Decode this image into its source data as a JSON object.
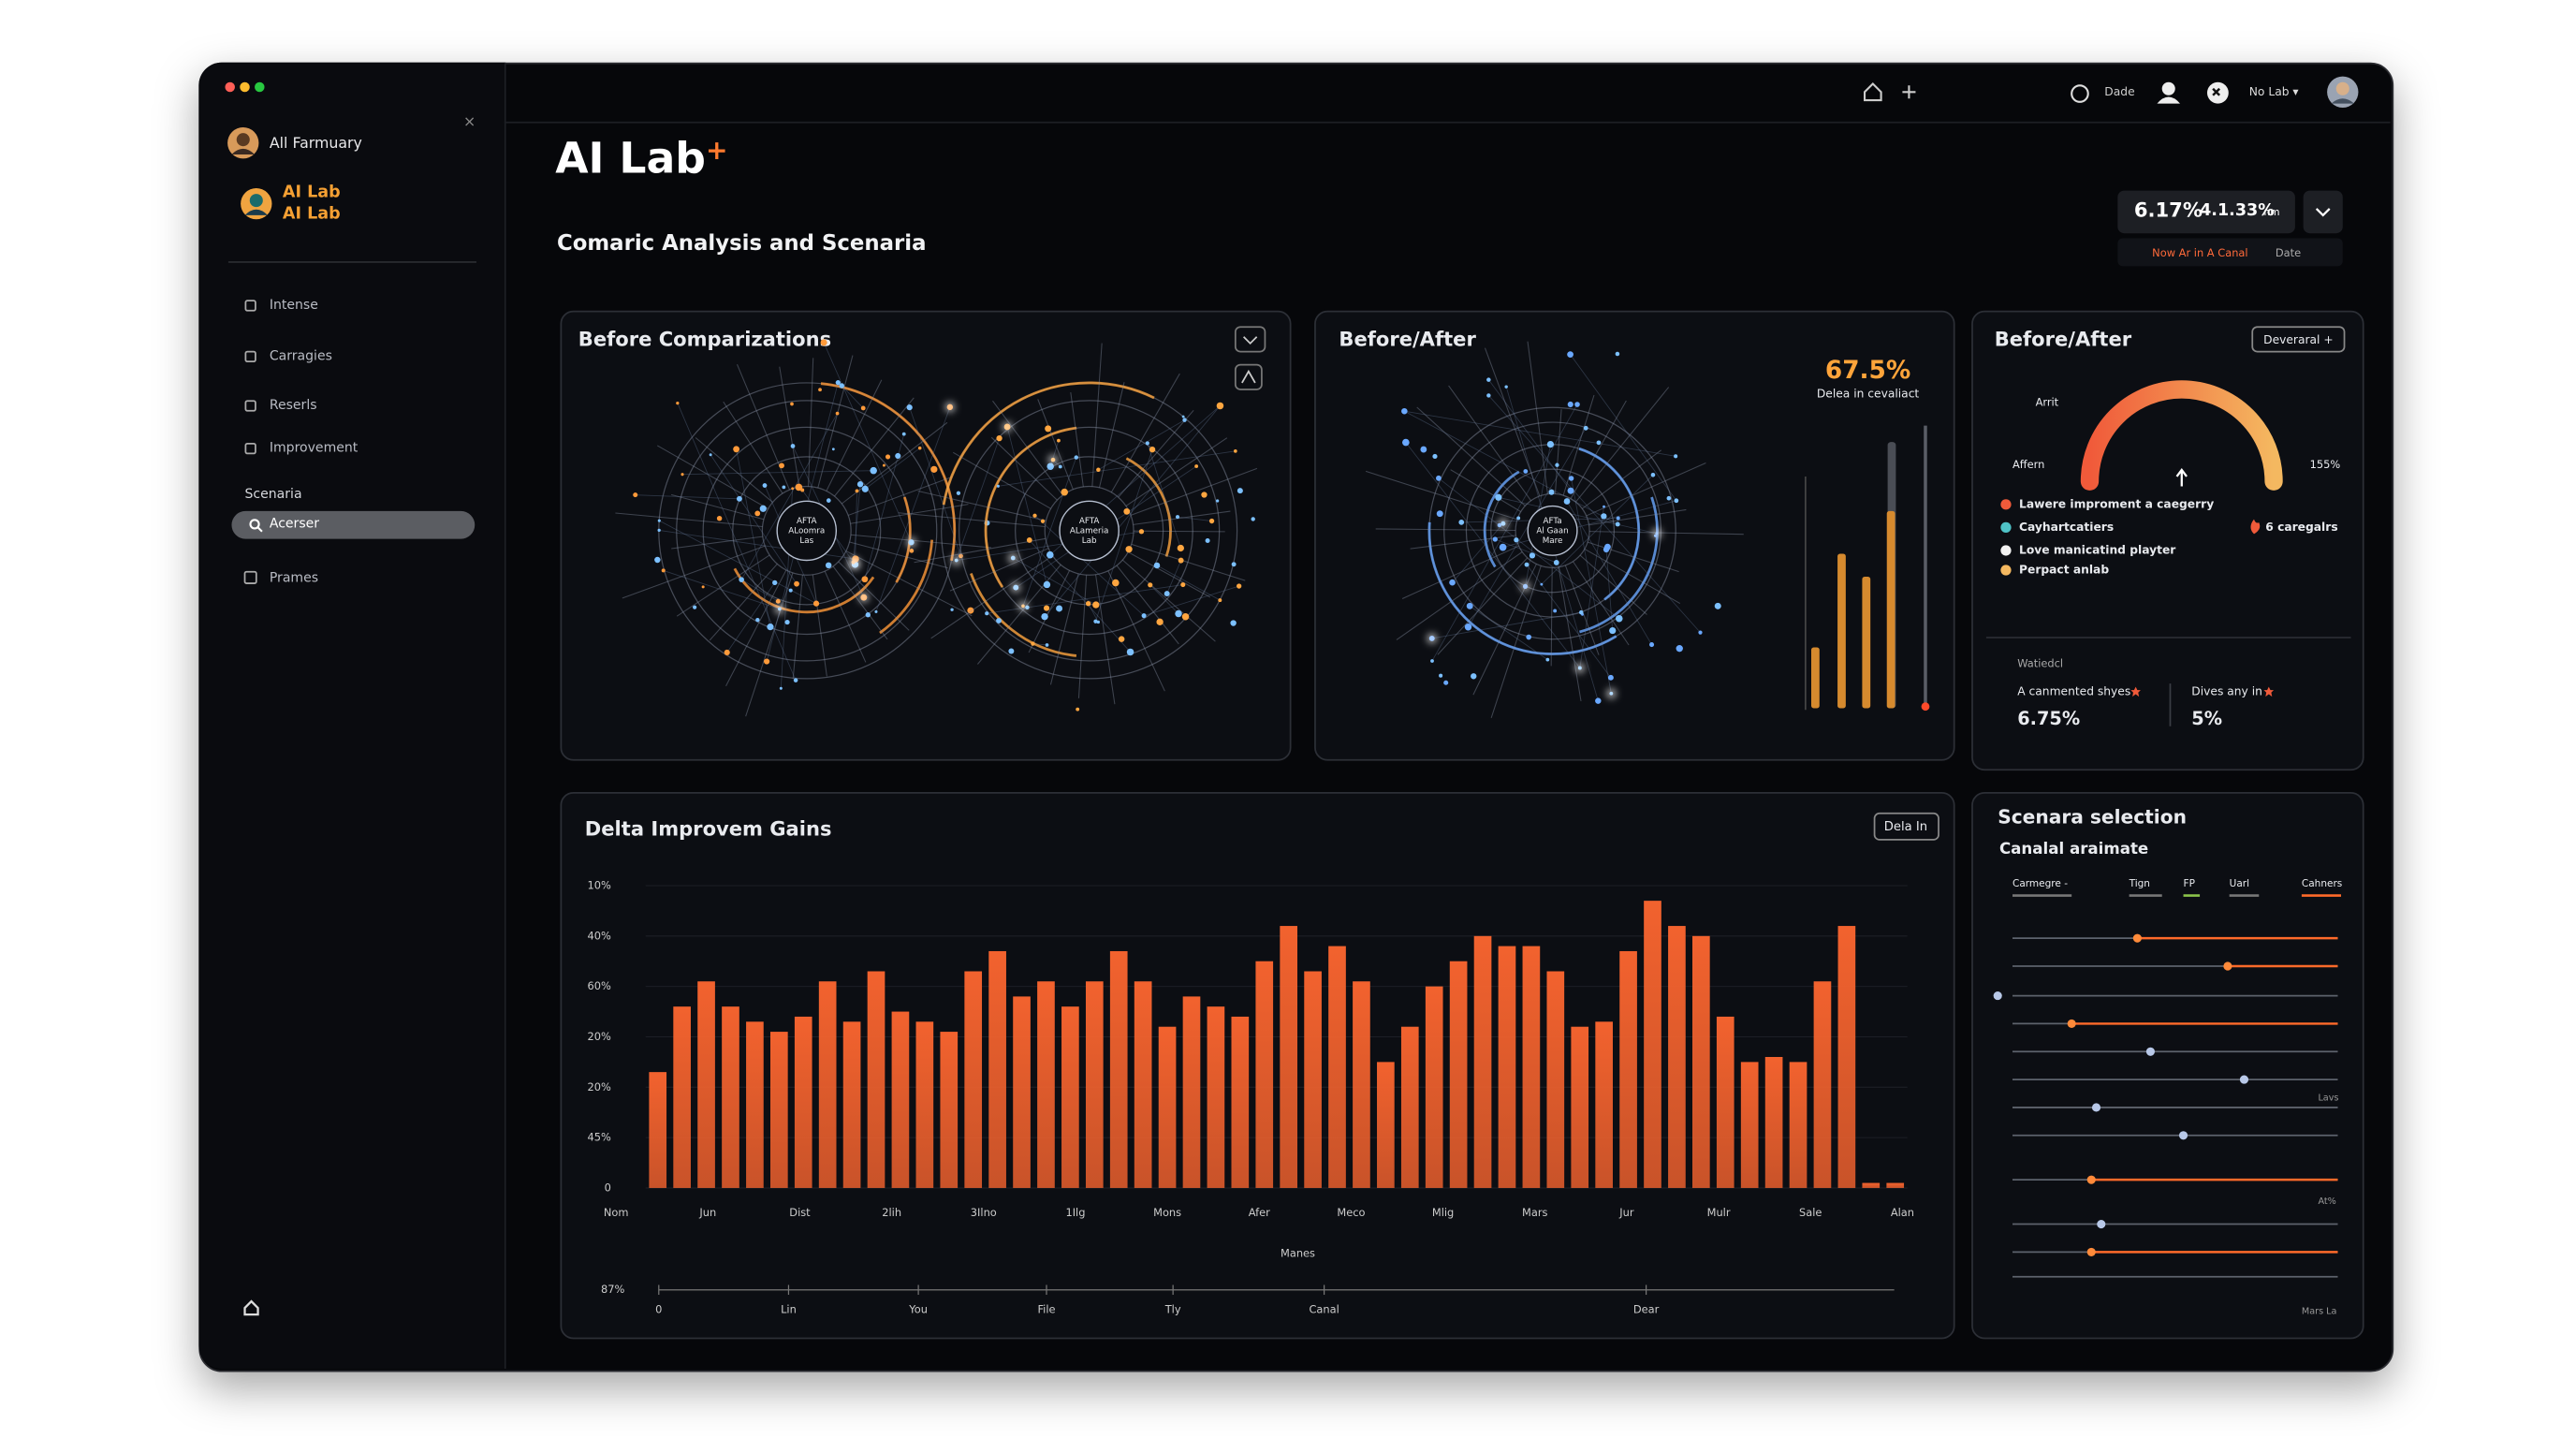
{
  "sidebar": {
    "user": "All Farmuary",
    "brand": [
      "AI Lab",
      "AI Lab"
    ],
    "nav": [
      "Intense",
      "Carragies",
      "Reserls",
      "Improvement"
    ],
    "section": "Scenaria",
    "active": "Acerser",
    "extra": "Prames"
  },
  "topbar": {
    "user": "Dade",
    "menu": "No Lab ▾"
  },
  "header": {
    "title": "AI Lab",
    "title_mark": "+",
    "subtitle": "Comaric Analysis and Scenaria"
  },
  "summary": {
    "value1": "6.17%",
    "value2": "4.1.33%",
    "unit": "nm",
    "note": "Now Ar in A Canal",
    "date": "Date"
  },
  "panels": {
    "comparisons": {
      "title": "Before Comparizations",
      "hub_left": [
        "AFTA",
        "ALoomra",
        "Las"
      ],
      "hub_right": [
        "AFTA",
        "ALameria",
        "Lab"
      ]
    },
    "before_after": {
      "title": "Before/After",
      "metric": "67.5%",
      "metric_label": "Delea in cevaliact",
      "hub": [
        "AFTa",
        "Al Gaan",
        "Mare"
      ]
    },
    "gauge": {
      "title": "Before/After",
      "button": "Deveraral +",
      "top_label": "Arrit",
      "left_label": "Affern",
      "right_label": "155%",
      "legend": [
        {
          "label": "Lawere improment a caegerry",
          "color": "#f05a3a"
        },
        {
          "label": "Cayhartcatiers",
          "color": "#4fc3c7"
        },
        {
          "label": "Love manicatind playter",
          "color": "#f2f2f2"
        },
        {
          "label": "Perpact anlab",
          "color": "#f4b860"
        }
      ],
      "legend_extra": "6 caregalrs",
      "footer_title": "Watiedcl",
      "stats": [
        {
          "label": "A canmented shyes",
          "value": "6.75%"
        },
        {
          "label": "Dives any in",
          "value": "5%"
        }
      ]
    },
    "scenario": {
      "title": "Scenara selection",
      "subtitle": "Canalal araimate",
      "tabs": [
        "Carmegre -",
        "Tign",
        "FP",
        "Uarl",
        "Cahners"
      ],
      "side_labels": [
        "Lavs",
        "At%"
      ],
      "footer": "Mars La"
    }
  },
  "chart_data": {
    "type": "bar",
    "title": "Delta Improvem Gains",
    "button": "Dela In",
    "color": "#f2622e",
    "grid": true,
    "ylim": [
      0,
      60
    ],
    "yticks": [
      0,
      {
        "value": 10,
        "label": "45%"
      },
      {
        "value": 20,
        "label": "20%"
      },
      {
        "value": 30,
        "label": "20%"
      },
      {
        "value": 40,
        "label": "60%"
      },
      {
        "value": 50,
        "label": "40%"
      },
      {
        "value": 60,
        "label": "10%"
      }
    ],
    "values": [
      23,
      36,
      41,
      36,
      33,
      31,
      34,
      41,
      33,
      43,
      35,
      33,
      31,
      43,
      47,
      38,
      41,
      36,
      41,
      47,
      41,
      32,
      38,
      36,
      34,
      45,
      52,
      43,
      48,
      41,
      25,
      32,
      40,
      45,
      50,
      48,
      48,
      43,
      32,
      33,
      47,
      57,
      52,
      50,
      34,
      25,
      26,
      25,
      41,
      52,
      1,
      1
    ],
    "x_labels": [
      "Nom",
      "Jun",
      "Dist",
      "2lih",
      "3Ilno",
      "1Ilg",
      "Mons",
      "Afer",
      "Meco",
      "Mlig",
      "Mars",
      "Jur",
      "Mulr",
      "Sale",
      "Alan"
    ],
    "x_axis_label": "Manes",
    "y2_label": "87%",
    "x2_labels": [
      "0",
      "Lin",
      "You",
      "File",
      "Tly",
      "Canal",
      "Dear"
    ]
  }
}
